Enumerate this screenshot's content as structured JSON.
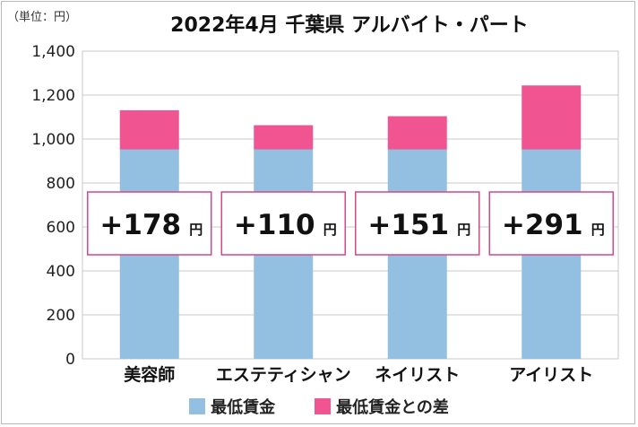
{
  "unit_label": "（単位：円）",
  "chart_data": {
    "type": "bar",
    "title": "2022年4月 千葉県 アルバイト・パート",
    "categories": [
      "美容師",
      "エステティシャン",
      "ネイリスト",
      "アイリスト"
    ],
    "series": [
      {
        "name": "最低賃金",
        "values": [
          953,
          953,
          953,
          953
        ],
        "color": "#93bfe0"
      },
      {
        "name": "最低賃金との差",
        "values": [
          178,
          110,
          151,
          291
        ],
        "color": "#f15591"
      }
    ],
    "diff_labels": [
      "+178",
      "+110",
      "+151",
      "+291"
    ],
    "diff_unit": "円",
    "yticks": [
      "0",
      "200",
      "400",
      "600",
      "800",
      "1,000",
      "1,200",
      "1,400"
    ],
    "ylim": [
      0,
      1400
    ],
    "grid": true,
    "legend_position": "bottom"
  }
}
